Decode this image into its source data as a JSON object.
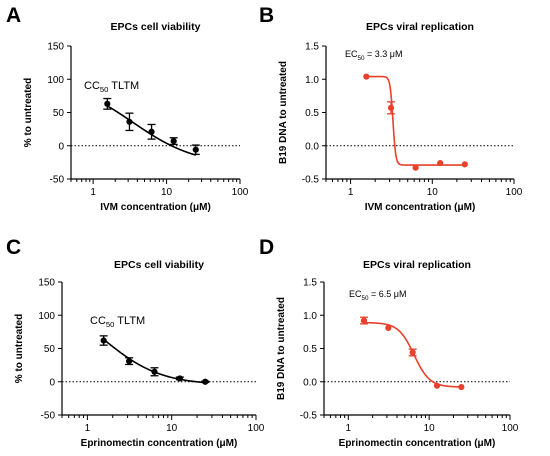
{
  "chart_data": [
    {
      "type": "scatter",
      "panel_label": "A",
      "title": "EPCs cell viability",
      "xlabel": "IVM concentration (μM)",
      "ylabel": "% to untreated",
      "x_scale": "log",
      "xlim": [
        0.5,
        100
      ],
      "ylim": [
        -50,
        150
      ],
      "x_ticks": [
        "1",
        "10",
        "100"
      ],
      "y_ticks": [
        "-50",
        "0",
        "50",
        "100",
        "150"
      ],
      "color": "#000000",
      "annotation": {
        "prefix": "CC",
        "sub": "50",
        "suffix": " TLTM"
      },
      "points": [
        {
          "x": 1.56,
          "y": 63,
          "err": 8
        },
        {
          "x": 3.125,
          "y": 36,
          "err": 13
        },
        {
          "x": 6.25,
          "y": 21,
          "err": 11
        },
        {
          "x": 12.5,
          "y": 7,
          "err": 5
        },
        {
          "x": 25,
          "y": -6,
          "err": 7
        }
      ],
      "fit": {
        "model": "four-parameter logistic",
        "top": 100,
        "bottom": -30,
        "ec50": 3.5,
        "hill": -1.0,
        "x_range": [
          1.56,
          25
        ]
      },
      "reference_line_y": 0
    },
    {
      "type": "scatter",
      "panel_label": "B",
      "title": "EPCs viral replication",
      "xlabel": "IVM concentration (μM)",
      "ylabel": "B19 DNA to untreated",
      "x_scale": "log",
      "xlim": [
        0.5,
        100
      ],
      "ylim": [
        -0.5,
        1.5
      ],
      "x_ticks": [
        "1",
        "10",
        "100"
      ],
      "y_ticks": [
        "-0.5",
        "0.0",
        "0.5",
        "1.0",
        "1.5"
      ],
      "color": "#e8402a",
      "annotation": {
        "prefix": "EC",
        "sub": "50",
        "suffix": " = 3.3 μM"
      },
      "points": [
        {
          "x": 1.56,
          "y": 1.04,
          "err": 0
        },
        {
          "x": 3.125,
          "y": 0.57,
          "err": 0.09
        },
        {
          "x": 6.25,
          "y": -0.33,
          "err": 0
        },
        {
          "x": 12.5,
          "y": -0.26,
          "err": 0
        },
        {
          "x": 25,
          "y": -0.28,
          "err": 0
        }
      ],
      "fit": {
        "model": "four-parameter logistic",
        "top": 1.04,
        "bottom": -0.29,
        "ec50": 3.3,
        "hill": -25,
        "x_range": [
          1.56,
          25
        ]
      },
      "reference_line_y": 0
    },
    {
      "type": "scatter",
      "panel_label": "C",
      "title": "EPCs cell viability",
      "xlabel": "Eprinomectin concentration (μM)",
      "ylabel": "% to untreated",
      "x_scale": "log",
      "xlim": [
        0.5,
        100
      ],
      "ylim": [
        -50,
        150
      ],
      "x_ticks": [
        "1",
        "10",
        "100"
      ],
      "y_ticks": [
        "-50",
        "0",
        "50",
        "100",
        "150"
      ],
      "color": "#000000",
      "annotation": {
        "prefix": "CC",
        "sub": "50",
        "suffix": " TLTM"
      },
      "points": [
        {
          "x": 1.56,
          "y": 62,
          "err": 7
        },
        {
          "x": 3.125,
          "y": 31,
          "err": 5
        },
        {
          "x": 6.25,
          "y": 15,
          "err": 6
        },
        {
          "x": 12.5,
          "y": 5,
          "err": 2
        },
        {
          "x": 25,
          "y": 0,
          "err": 1
        }
      ],
      "fit": {
        "model": "four-parameter logistic",
        "top": 130,
        "bottom": -5,
        "ec50": 1.6,
        "hill": -1.3,
        "x_range": [
          1.56,
          25
        ]
      },
      "reference_line_y": 0
    },
    {
      "type": "scatter",
      "panel_label": "D",
      "title": "EPCs viral replication",
      "xlabel": "Eprinomectin concentration (μM)",
      "ylabel": "B19 DNA to untreated",
      "x_scale": "log",
      "xlim": [
        0.5,
        100
      ],
      "ylim": [
        -0.5,
        1.5
      ],
      "x_ticks": [
        "1",
        "10",
        "100"
      ],
      "y_ticks": [
        "-0.5",
        "0.0",
        "0.5",
        "1.0",
        "1.5"
      ],
      "color": "#e8402a",
      "annotation": {
        "prefix": "EC",
        "sub": "50",
        "suffix": " = 6.5 μM"
      },
      "points": [
        {
          "x": 1.56,
          "y": 0.92,
          "err": 0.05
        },
        {
          "x": 3.125,
          "y": 0.81,
          "err": 0
        },
        {
          "x": 6.25,
          "y": 0.44,
          "err": 0.05
        },
        {
          "x": 12.5,
          "y": -0.06,
          "err": 0
        },
        {
          "x": 25,
          "y": -0.08,
          "err": 0
        }
      ],
      "fit": {
        "model": "four-parameter logistic",
        "top": 0.89,
        "bottom": -0.08,
        "ec50": 6.5,
        "hill": -4.5,
        "x_range": [
          1.56,
          25
        ]
      },
      "reference_line_y": 0
    }
  ]
}
